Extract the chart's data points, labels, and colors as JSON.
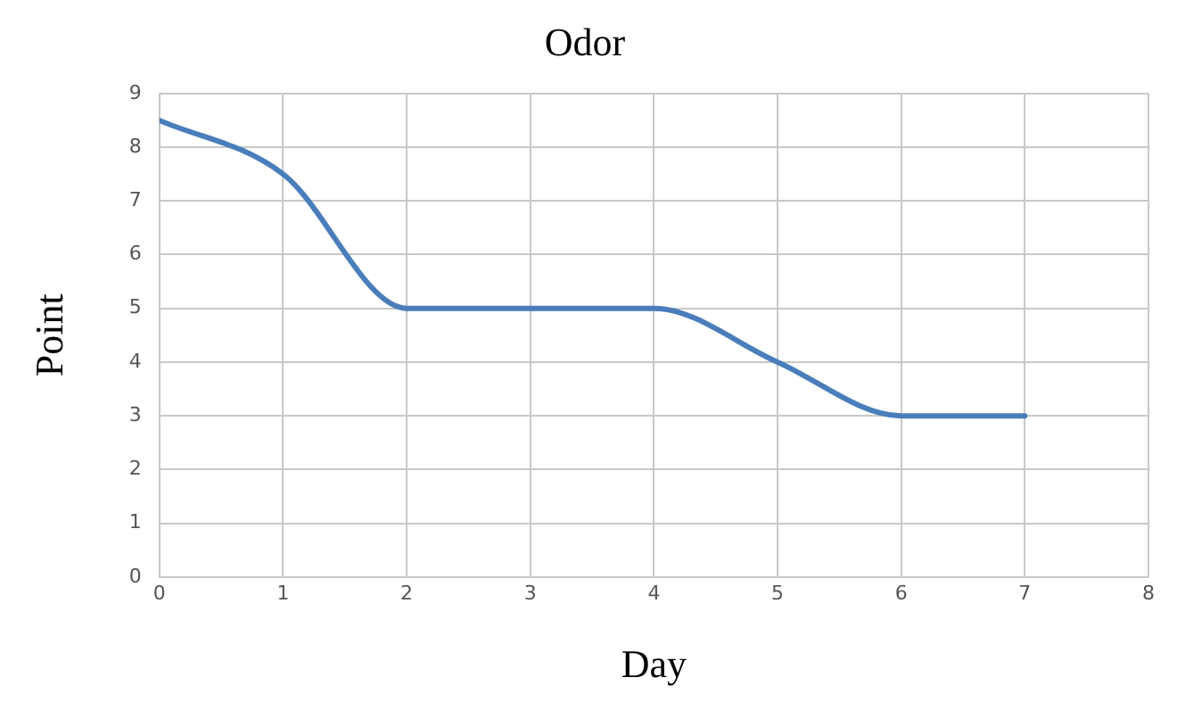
{
  "chart_data": {
    "type": "line",
    "title": "Odor",
    "xlabel": "Day",
    "ylabel": "Point",
    "x": [
      0,
      1,
      2,
      3,
      4,
      5,
      6,
      7
    ],
    "series": [
      {
        "color": "#4a7ebb",
        "values": [
          8.5,
          7.5,
          5,
          5,
          5,
          4,
          3,
          3
        ]
      }
    ],
    "xlim": [
      0,
      8
    ],
    "xticks": [
      0,
      1,
      2,
      3,
      4,
      5,
      6,
      7,
      8
    ],
    "ylim": [
      0,
      9
    ],
    "yticks": [
      0,
      1,
      2,
      3,
      4,
      5,
      6,
      7,
      8,
      9
    ],
    "grid": true,
    "legend": false,
    "marker": "none",
    "line_style": "solid"
  }
}
